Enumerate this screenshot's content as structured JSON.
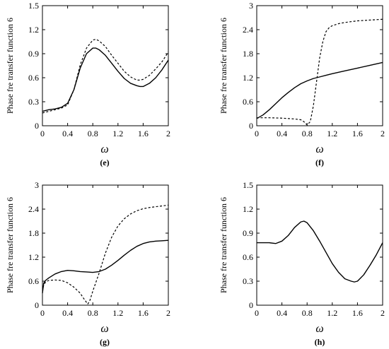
{
  "chart_data": [
    {
      "type": "line",
      "panel_label": "(e)",
      "xlabel": "ω",
      "ylabel": "Phase fre transfer function 6",
      "xlim": [
        0,
        2
      ],
      "ylim": [
        0,
        1.5
      ],
      "xticks": [
        "0",
        "0.4",
        "0.8",
        "1.2",
        "1.6",
        "2"
      ],
      "yticks": [
        "0",
        "0.3",
        "0.6",
        "0.9",
        "1.2",
        "1.5"
      ],
      "series": [
        {
          "style": "solid",
          "x": [
            0,
            0.1,
            0.2,
            0.3,
            0.4,
            0.5,
            0.6,
            0.7,
            0.8,
            0.85,
            0.9,
            1.0,
            1.1,
            1.2,
            1.3,
            1.4,
            1.5,
            1.55,
            1.6,
            1.7,
            1.8,
            1.9,
            2.0
          ],
          "y": [
            0.18,
            0.2,
            0.21,
            0.23,
            0.28,
            0.45,
            0.72,
            0.9,
            0.97,
            0.97,
            0.95,
            0.88,
            0.78,
            0.68,
            0.59,
            0.53,
            0.5,
            0.49,
            0.49,
            0.53,
            0.6,
            0.7,
            0.82
          ]
        },
        {
          "style": "dashed",
          "x": [
            0,
            0.1,
            0.2,
            0.3,
            0.4,
            0.5,
            0.6,
            0.7,
            0.8,
            0.85,
            0.9,
            1.0,
            1.1,
            1.2,
            1.3,
            1.4,
            1.5,
            1.55,
            1.6,
            1.7,
            1.8,
            1.9,
            2.0
          ],
          "y": [
            0.16,
            0.18,
            0.2,
            0.22,
            0.26,
            0.45,
            0.76,
            0.97,
            1.07,
            1.08,
            1.06,
            0.99,
            0.88,
            0.78,
            0.68,
            0.61,
            0.57,
            0.57,
            0.58,
            0.63,
            0.71,
            0.8,
            0.92
          ]
        }
      ]
    },
    {
      "type": "line",
      "panel_label": "(f)",
      "xlabel": "ω",
      "ylabel": "Phase fre transfer function 6",
      "xlim": [
        0,
        2
      ],
      "ylim": [
        0,
        3
      ],
      "xticks": [
        "0",
        "0.4",
        "0.8",
        "1.2",
        "1.6",
        "2"
      ],
      "yticks": [
        "0",
        "0.6",
        "1.2",
        "1.8",
        "2.4",
        "3"
      ],
      "series": [
        {
          "style": "solid",
          "x": [
            0,
            0.1,
            0.2,
            0.3,
            0.4,
            0.5,
            0.6,
            0.7,
            0.8,
            0.9,
            1.0,
            1.1,
            1.2,
            1.4,
            1.6,
            1.8,
            2.0
          ],
          "y": [
            0.18,
            0.27,
            0.4,
            0.55,
            0.7,
            0.83,
            0.95,
            1.05,
            1.12,
            1.18,
            1.22,
            1.26,
            1.3,
            1.37,
            1.44,
            1.51,
            1.58
          ]
        },
        {
          "style": "dashed",
          "x": [
            0,
            0.2,
            0.4,
            0.6,
            0.7,
            0.75,
            0.8,
            0.85,
            0.9,
            0.95,
            1.0,
            1.05,
            1.1,
            1.15,
            1.2,
            1.3,
            1.4,
            1.6,
            1.8,
            2.0
          ],
          "y": [
            0.2,
            0.2,
            0.19,
            0.17,
            0.15,
            0.1,
            0.02,
            0.1,
            0.5,
            1.1,
            1.7,
            2.1,
            2.35,
            2.45,
            2.5,
            2.55,
            2.58,
            2.62,
            2.64,
            2.66
          ]
        }
      ]
    },
    {
      "type": "line",
      "panel_label": "(g)",
      "xlabel": "ω",
      "ylabel": "Phase fre transfer function 6",
      "xlim": [
        0,
        2
      ],
      "ylim": [
        0,
        3
      ],
      "xticks": [
        "0",
        "0.4",
        "0.8",
        "1.2",
        "1.6",
        "2"
      ],
      "yticks": [
        "0",
        "0.6",
        "1.2",
        "1.8",
        "2.4",
        "3"
      ],
      "series": [
        {
          "style": "solid",
          "x": [
            0,
            0.02,
            0.05,
            0.1,
            0.2,
            0.3,
            0.4,
            0.5,
            0.6,
            0.7,
            0.8,
            0.9,
            1.0,
            1.1,
            1.2,
            1.3,
            1.4,
            1.5,
            1.6,
            1.7,
            1.8,
            1.9,
            2.0
          ],
          "y": [
            0.3,
            0.55,
            0.62,
            0.68,
            0.78,
            0.84,
            0.87,
            0.86,
            0.84,
            0.83,
            0.82,
            0.84,
            0.9,
            1.0,
            1.12,
            1.25,
            1.37,
            1.47,
            1.54,
            1.58,
            1.6,
            1.61,
            1.62
          ]
        },
        {
          "style": "dashed",
          "x": [
            0,
            0.02,
            0.05,
            0.1,
            0.2,
            0.3,
            0.4,
            0.5,
            0.6,
            0.65,
            0.7,
            0.72,
            0.75,
            0.8,
            0.9,
            1.0,
            1.1,
            1.2,
            1.3,
            1.4,
            1.5,
            1.6,
            1.7,
            1.8,
            1.9,
            2.0
          ],
          "y": [
            0.35,
            0.5,
            0.58,
            0.62,
            0.63,
            0.62,
            0.56,
            0.45,
            0.3,
            0.18,
            0.07,
            0.03,
            0.1,
            0.35,
            0.8,
            1.3,
            1.7,
            1.98,
            2.16,
            2.28,
            2.36,
            2.41,
            2.44,
            2.46,
            2.48,
            2.5
          ]
        }
      ]
    },
    {
      "type": "line",
      "panel_label": "(h)",
      "xlabel": "ω",
      "ylabel": "Phase fre transfer function 6",
      "xlim": [
        0,
        2
      ],
      "ylim": [
        0,
        1.5
      ],
      "xticks": [
        "0",
        "0.4",
        "0.8",
        "1.2",
        "1.6",
        "2"
      ],
      "yticks": [
        "0",
        "0.3",
        "0.6",
        "0.9",
        "1.2",
        "1.5"
      ],
      "series": [
        {
          "style": "solid",
          "x": [
            0,
            0.1,
            0.2,
            0.3,
            0.4,
            0.5,
            0.6,
            0.7,
            0.75,
            0.8,
            0.9,
            1.0,
            1.1,
            1.2,
            1.3,
            1.4,
            1.5,
            1.55,
            1.6,
            1.7,
            1.8,
            1.9,
            2.0
          ],
          "y": [
            0.78,
            0.78,
            0.78,
            0.77,
            0.8,
            0.87,
            0.97,
            1.04,
            1.05,
            1.03,
            0.93,
            0.8,
            0.66,
            0.52,
            0.41,
            0.33,
            0.3,
            0.29,
            0.3,
            0.38,
            0.5,
            0.63,
            0.78
          ]
        }
      ]
    }
  ]
}
